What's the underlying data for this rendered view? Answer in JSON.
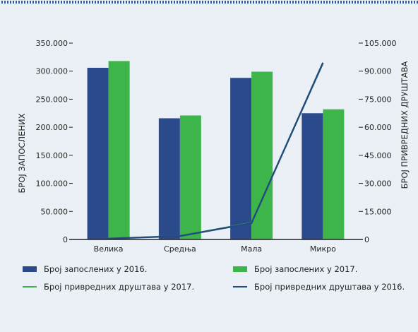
{
  "colors": {
    "background": "#eaf0f5",
    "border_dots": "#2a5d9b",
    "bar_2016": "#2b4a8b",
    "bar_2017": "#3db54a",
    "line_2017": "#3db54a",
    "line_2016": "#234a7e",
    "axis": "#222222"
  },
  "legend": {
    "employees_2016": "Број запослених у 2016.",
    "employees_2017": "Број запослених у 2017.",
    "companies_2017": "Број привредних друштава у 2017.",
    "companies_2016": "Број привредних друштава у 2016."
  },
  "chart_data": {
    "type": "bar",
    "categories": [
      "Велика",
      "Средња",
      "Мала",
      "Микро"
    ],
    "ylabel": "БРОЈ ЗАПОСЛЕНИХ",
    "y2label": "БРОЈ ПРИВРЕДНИХ ДРУШТАВА",
    "ylim": [
      0,
      350000
    ],
    "y2lim": [
      0,
      105000
    ],
    "yticks": [
      "0",
      "50.000",
      "100.000",
      "150.000",
      "200.000",
      "250.000",
      "300.000",
      "350.000"
    ],
    "y2ticks": [
      "0",
      "15.000",
      "30.000",
      "45.000",
      "60.000",
      "75.000",
      "90.000",
      "105.000"
    ],
    "y_tick_values": [
      0,
      50000,
      100000,
      150000,
      200000,
      250000,
      300000,
      350000
    ],
    "y2_tick_values": [
      0,
      15000,
      30000,
      45000,
      60000,
      75000,
      90000,
      105000
    ],
    "grid": false,
    "legend_position": "bottom",
    "bar_series": [
      {
        "name": "Број запослених у 2016.",
        "values": [
          306000,
          216000,
          288000,
          225000
        ]
      },
      {
        "name": "Број запослених у 2017.",
        "values": [
          318000,
          221000,
          299000,
          232000
        ]
      }
    ],
    "line_series": [
      {
        "name": "Број привредних друштава у 2017.",
        "axis": "y2",
        "values": [
          500,
          1900,
          9000,
          94000
        ]
      },
      {
        "name": "Број привредних друштава у 2016.",
        "axis": "y2",
        "values": [
          450,
          1800,
          8700,
          94500
        ]
      }
    ]
  }
}
